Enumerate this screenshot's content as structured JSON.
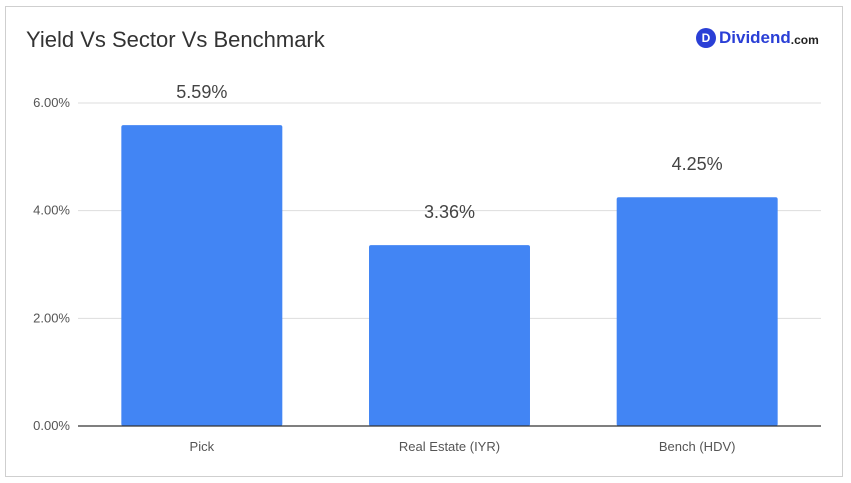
{
  "brand": {
    "badge": "D",
    "name": "Dividend",
    "tld": ".com"
  },
  "colors": {
    "bar": "#4285f4",
    "grid": "#dddddd",
    "axis": "#333333",
    "text": "#555555"
  },
  "chart_data": {
    "type": "bar",
    "title": "Yield Vs Sector Vs Benchmark",
    "categories": [
      "Pick",
      "Real Estate (IYR)",
      "Bench (HDV)"
    ],
    "values": [
      5.59,
      3.36,
      4.25
    ],
    "data_labels": [
      "5.59%",
      "3.36%",
      "4.25%"
    ],
    "ylim": [
      0,
      6
    ],
    "yticks": [
      0,
      2,
      4,
      6
    ],
    "ytick_labels": [
      "0.00%",
      "2.00%",
      "4.00%",
      "6.00%"
    ],
    "xlabel": "",
    "ylabel": "",
    "grid": true
  }
}
